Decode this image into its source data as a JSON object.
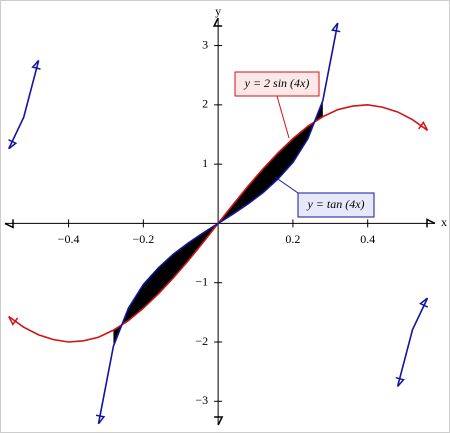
{
  "chart_data": {
    "type": "line",
    "x_label": "x",
    "y_label": "y",
    "x": [
      -0.56,
      -0.52,
      -0.48,
      -0.44,
      -0.4,
      -0.36,
      -0.32,
      -0.28,
      -0.24,
      -0.2,
      -0.16,
      -0.12,
      -0.08,
      -0.04,
      0,
      0.04,
      0.08,
      0.12,
      0.16,
      0.2,
      0.24,
      0.28,
      0.32,
      0.36,
      0.4,
      0.44,
      0.48,
      0.52,
      0.56
    ],
    "series": [
      {
        "name": "y =  2 sin (4x)",
        "color": "#d01414",
        "values": [
          -1.57,
          -1.75,
          -1.88,
          -1.96,
          -2.0,
          -1.98,
          -1.92,
          -1.8,
          -1.64,
          -1.43,
          -1.19,
          -0.92,
          -0.63,
          -0.32,
          0,
          0.32,
          0.63,
          0.92,
          1.19,
          1.43,
          1.64,
          1.8,
          1.92,
          1.98,
          2.0,
          1.96,
          1.88,
          1.75,
          1.57
        ]
      },
      {
        "name": "y =  tan (4x)",
        "color": "#1414a0",
        "values": [
          1.26,
          1.79,
          2.75,
          null,
          null,
          null,
          -3.38,
          -2.07,
          -1.43,
          -1.03,
          -0.75,
          -0.52,
          -0.33,
          -0.16,
          0,
          0.16,
          0.33,
          0.52,
          0.75,
          1.03,
          1.43,
          2.07,
          3.38,
          null,
          null,
          null,
          -2.75,
          -1.79,
          -1.26
        ]
      }
    ],
    "xlim": [
      -0.57,
      0.58
    ],
    "ylim": [
      -3.4,
      3.6
    ],
    "xticks": [
      {
        "value": -0.4,
        "label": "−0.4"
      },
      {
        "value": -0.2,
        "label": "−0.2"
      },
      0.2,
      0.4
    ],
    "yticks": [
      {
        "value": -3,
        "label": "−3"
      },
      {
        "value": -2,
        "label": "−2"
      },
      {
        "value": -1,
        "label": "−1"
      },
      1,
      2,
      3
    ],
    "grid": false
  }
}
